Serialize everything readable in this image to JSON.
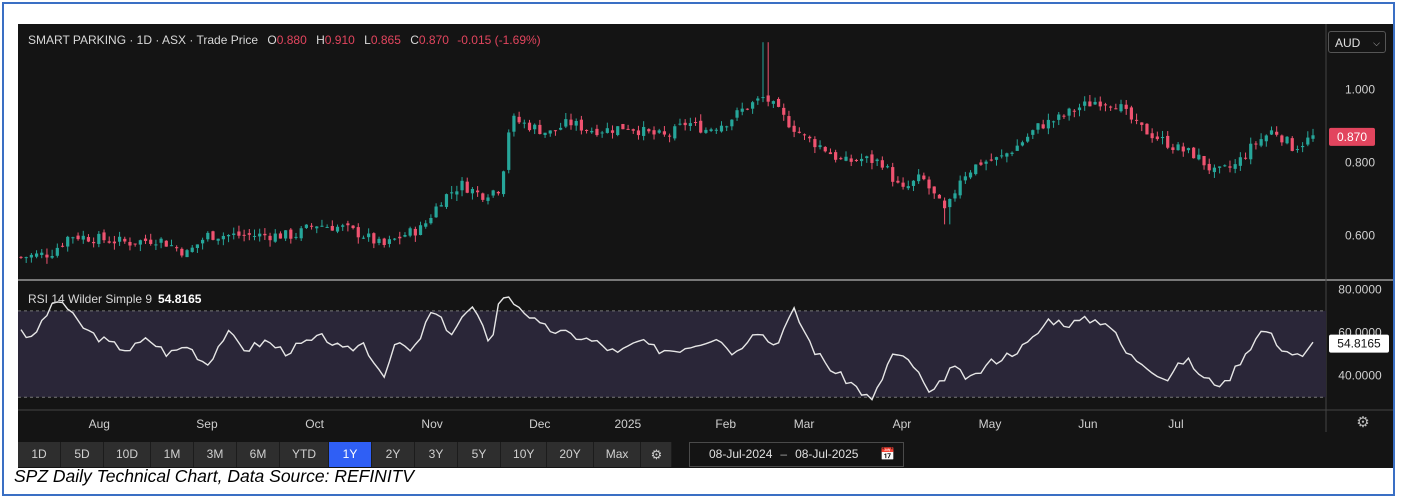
{
  "header": {
    "symbol_text": "SMART PARKING · 1D · ASX · Trade Price",
    "o_label": "O",
    "o_value": "0.880",
    "h_label": "H",
    "h_value": "0.910",
    "l_label": "L",
    "l_value": "0.865",
    "c_label": "C",
    "c_value": "0.870",
    "change": "-0.015 (-1.69%)"
  },
  "currency_select": "AUD",
  "rsi_header": {
    "label": "RSI 14 Wilder Simple 9",
    "value": "54.8165"
  },
  "toolbar": {
    "ranges": [
      "1D",
      "5D",
      "10D",
      "1M",
      "3M",
      "6M",
      "YTD",
      "1Y",
      "2Y",
      "3Y",
      "5Y",
      "10Y",
      "20Y",
      "Max"
    ],
    "active": "1Y",
    "settings_icon": "gear-icon"
  },
  "date_range": {
    "from": "08-Jul-2024",
    "separator": "–",
    "to": "08-Jul-2025",
    "icon": "calendar-icon"
  },
  "caption": "SPZ Daily Technical Chart, Data Source: REFINITV",
  "colors": {
    "up": "#26a69a",
    "down": "#ef5370",
    "rsi_line": "#e6e6e6",
    "rsi_band": "#2a2638",
    "background": "#141414",
    "last_price": "#e2455e"
  },
  "chart_data": {
    "type": "candlestick",
    "price_axis": {
      "ticks": [
        "1.000",
        "0.800",
        "0.600"
      ],
      "last_price_label": "0.870",
      "ylim": [
        0.48,
        1.18
      ]
    },
    "rsi_axis": {
      "ticks": [
        "80.0000",
        "60.0000",
        "40.0000"
      ],
      "last_value_label": "54.8165",
      "ylim": [
        25,
        82
      ],
      "band": [
        30,
        70
      ]
    },
    "x_labels": [
      "Aug",
      "Sep",
      "Oct",
      "Nov",
      "Dec",
      "2025",
      "Feb",
      "Mar",
      "Apr",
      "May",
      "Jun",
      "Jul"
    ],
    "x_label_positions": [
      0.08,
      0.19,
      0.3,
      0.42,
      0.53,
      0.62,
      0.72,
      0.8,
      0.9,
      0.99,
      1.09,
      1.18
    ],
    "price_anchors": [
      [
        0,
        0.54
      ],
      [
        0.03,
        0.55
      ],
      [
        0.05,
        0.6
      ],
      [
        0.08,
        0.59
      ],
      [
        0.11,
        0.58
      ],
      [
        0.14,
        0.59
      ],
      [
        0.17,
        0.55
      ],
      [
        0.19,
        0.6
      ],
      [
        0.22,
        0.6
      ],
      [
        0.25,
        0.6
      ],
      [
        0.28,
        0.6
      ],
      [
        0.3,
        0.63
      ],
      [
        0.33,
        0.62
      ],
      [
        0.35,
        0.6
      ],
      [
        0.37,
        0.57
      ],
      [
        0.39,
        0.6
      ],
      [
        0.41,
        0.62
      ],
      [
        0.43,
        0.7
      ],
      [
        0.45,
        0.74
      ],
      [
        0.47,
        0.71
      ],
      [
        0.49,
        0.73
      ],
      [
        0.5,
        0.92
      ],
      [
        0.52,
        0.9
      ],
      [
        0.54,
        0.88
      ],
      [
        0.56,
        0.91
      ],
      [
        0.58,
        0.89
      ],
      [
        0.6,
        0.89
      ],
      [
        0.62,
        0.9
      ],
      [
        0.64,
        0.88
      ],
      [
        0.66,
        0.87
      ],
      [
        0.68,
        0.91
      ],
      [
        0.7,
        0.89
      ],
      [
        0.72,
        0.91
      ],
      [
        0.74,
        0.95
      ],
      [
        0.76,
        0.98
      ],
      [
        0.78,
        0.92
      ],
      [
        0.8,
        0.87
      ],
      [
        0.82,
        0.84
      ],
      [
        0.84,
        0.8
      ],
      [
        0.86,
        0.81
      ],
      [
        0.88,
        0.8
      ],
      [
        0.9,
        0.72
      ],
      [
        0.92,
        0.76
      ],
      [
        0.93,
        0.72
      ],
      [
        0.945,
        0.66
      ],
      [
        0.96,
        0.76
      ],
      [
        0.98,
        0.8
      ],
      [
        1.0,
        0.81
      ],
      [
        1.02,
        0.85
      ],
      [
        1.04,
        0.9
      ],
      [
        1.06,
        0.92
      ],
      [
        1.08,
        0.95
      ],
      [
        1.1,
        0.97
      ],
      [
        1.12,
        0.96
      ],
      [
        1.14,
        0.9
      ],
      [
        1.16,
        0.87
      ],
      [
        1.18,
        0.84
      ],
      [
        1.2,
        0.82
      ],
      [
        1.22,
        0.77
      ],
      [
        1.24,
        0.79
      ],
      [
        1.26,
        0.85
      ],
      [
        1.28,
        0.89
      ],
      [
        1.3,
        0.84
      ],
      [
        1.32,
        0.87
      ]
    ],
    "rsi_anchors": [
      [
        0,
        62
      ],
      [
        0.01,
        56
      ],
      [
        0.025,
        68
      ],
      [
        0.04,
        76
      ],
      [
        0.055,
        66
      ],
      [
        0.07,
        60
      ],
      [
        0.09,
        55
      ],
      [
        0.11,
        52
      ],
      [
        0.13,
        57
      ],
      [
        0.15,
        50
      ],
      [
        0.17,
        54
      ],
      [
        0.19,
        45
      ],
      [
        0.21,
        60
      ],
      [
        0.23,
        52
      ],
      [
        0.25,
        56
      ],
      [
        0.27,
        51
      ],
      [
        0.29,
        55
      ],
      [
        0.31,
        58
      ],
      [
        0.33,
        51
      ],
      [
        0.35,
        55
      ],
      [
        0.37,
        40
      ],
      [
        0.385,
        56
      ],
      [
        0.4,
        50
      ],
      [
        0.42,
        70
      ],
      [
        0.44,
        60
      ],
      [
        0.46,
        72
      ],
      [
        0.48,
        55
      ],
      [
        0.49,
        78
      ],
      [
        0.51,
        72
      ],
      [
        0.53,
        63
      ],
      [
        0.55,
        60
      ],
      [
        0.57,
        58
      ],
      [
        0.59,
        55
      ],
      [
        0.61,
        50
      ],
      [
        0.63,
        56
      ],
      [
        0.65,
        52
      ],
      [
        0.67,
        52
      ],
      [
        0.69,
        55
      ],
      [
        0.71,
        58
      ],
      [
        0.73,
        50
      ],
      [
        0.75,
        62
      ],
      [
        0.77,
        54
      ],
      [
        0.79,
        70
      ],
      [
        0.81,
        52
      ],
      [
        0.83,
        42
      ],
      [
        0.85,
        36
      ],
      [
        0.87,
        28
      ],
      [
        0.89,
        50
      ],
      [
        0.91,
        46
      ],
      [
        0.93,
        30
      ],
      [
        0.95,
        44
      ],
      [
        0.97,
        38
      ],
      [
        0.99,
        46
      ],
      [
        1.01,
        50
      ],
      [
        1.03,
        55
      ],
      [
        1.05,
        66
      ],
      [
        1.07,
        64
      ],
      [
        1.09,
        66
      ],
      [
        1.11,
        65
      ],
      [
        1.13,
        50
      ],
      [
        1.15,
        45
      ],
      [
        1.17,
        38
      ],
      [
        1.19,
        48
      ],
      [
        1.21,
        38
      ],
      [
        1.23,
        36
      ],
      [
        1.25,
        50
      ],
      [
        1.27,
        62
      ],
      [
        1.29,
        52
      ],
      [
        1.31,
        48
      ],
      [
        1.32,
        55
      ]
    ]
  }
}
